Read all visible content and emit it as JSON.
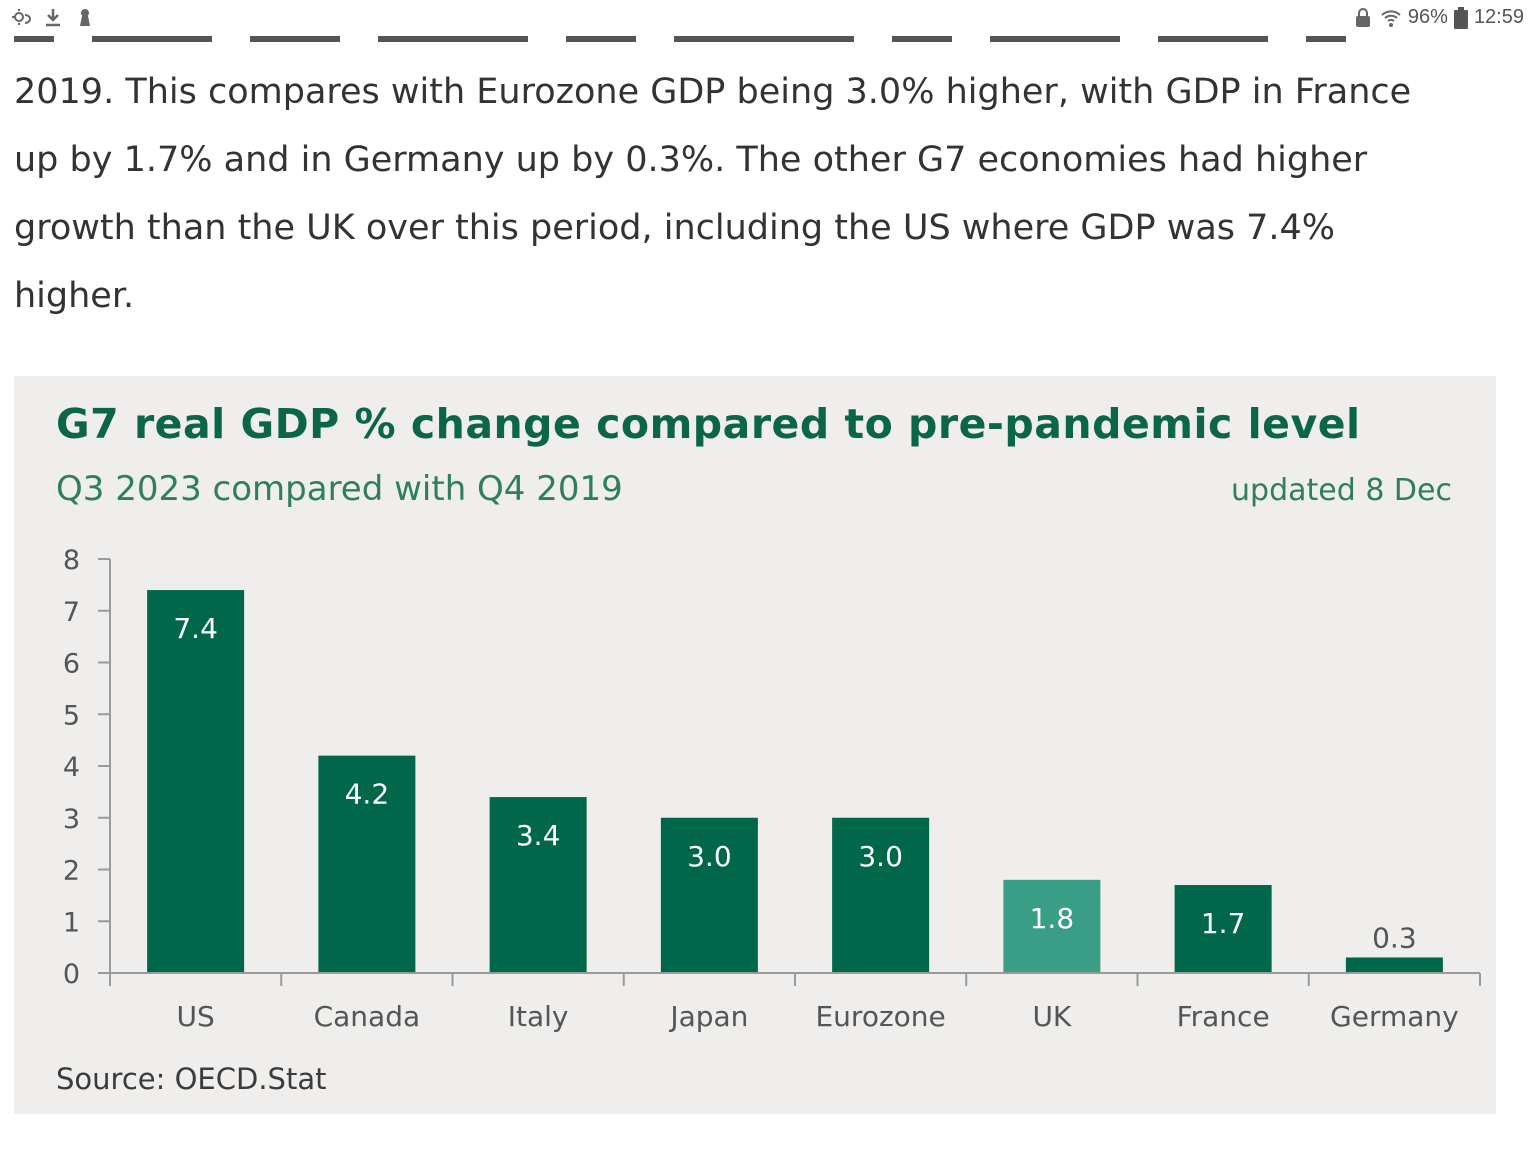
{
  "status_bar": {
    "left_icons": [
      "weather-icon",
      "download-icon",
      "keyhole-icon"
    ],
    "battery_percent": "96%",
    "time": "12:59",
    "right_icons": [
      "lock-icon",
      "wifi-icon",
      "battery-icon"
    ]
  },
  "article": {
    "paragraph": "2019. This compares with Eurozone GDP being 3.0% higher, with GDP in France up by 1.7% and in Germany up by 0.3%. The other G7 economies had higher growth than the UK over this period, including the US where GDP was 7.4% higher."
  },
  "chart_card": {
    "source": "Source: OECD.Stat"
  },
  "chart_data": {
    "type": "bar",
    "title": "G7 real GDP % change compared to pre-pandemic level",
    "subtitle": "Q3 2023 compared with Q4 2019",
    "annotation": "updated 8 Dec",
    "categories": [
      "US",
      "Canada",
      "Italy",
      "Japan",
      "Eurozone",
      "UK",
      "France",
      "Germany"
    ],
    "values": [
      7.4,
      4.2,
      3.4,
      3.0,
      3.0,
      1.8,
      1.7,
      0.3
    ],
    "value_labels": [
      "7.4",
      "4.2",
      "3.4",
      "3.0",
      "3.0",
      "1.8",
      "1.7",
      "0.3"
    ],
    "highlight_category": "UK",
    "ylim": [
      0,
      8
    ],
    "yticks": [
      "0",
      "1",
      "2",
      "3",
      "4",
      "5",
      "6",
      "7",
      "8"
    ],
    "xlabel": "",
    "ylabel": "",
    "grid": false,
    "colors": {
      "bar": "#00674a",
      "highlight": "#3a9e86"
    }
  }
}
